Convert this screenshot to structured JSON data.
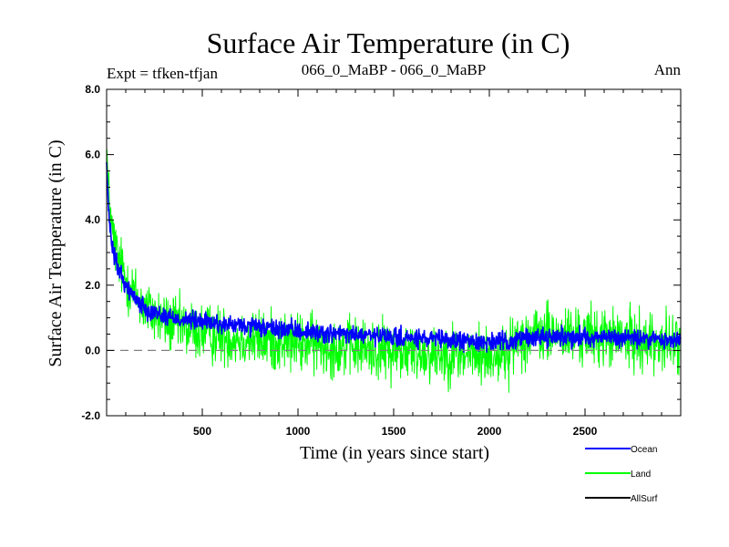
{
  "chart_data": {
    "type": "line",
    "title": "Surface Air Temperature (in C)",
    "subtitle_left": "Expt = tfken-tfjan",
    "subtitle_center": "066_0_MaBP - 066_0_MaBP",
    "subtitle_right": "Ann",
    "xlabel": "Time (in years since start)",
    "ylabel": "Surface Air Temperature (in C)",
    "xlim": [
      0,
      3000
    ],
    "ylim": [
      -2.0,
      8.0
    ],
    "xticks": [
      500,
      1000,
      1500,
      2000,
      2500
    ],
    "xtick_labels": [
      "500",
      "1000",
      "1500",
      "2000",
      "2500"
    ],
    "yticks": [
      -2.0,
      0.0,
      2.0,
      4.0,
      6.0,
      8.0
    ],
    "ytick_labels": [
      "-2.0",
      "0.0",
      "2.0",
      "4.0",
      "6.0",
      "8.0"
    ],
    "reference_line": {
      "y": 0.0,
      "style": "dashed",
      "color": "#808080"
    },
    "series": [
      {
        "name": "Land",
        "color": "#00ff00",
        "noise_amplitude": 0.9,
        "x": [
          0,
          10,
          30,
          60,
          100,
          150,
          200,
          300,
          400,
          500,
          600,
          700,
          800,
          900,
          1000,
          1100,
          1200,
          1300,
          1400,
          1500,
          1600,
          1700,
          1800,
          1900,
          2000,
          2100,
          2150,
          2200,
          2300,
          2400,
          2500,
          2600,
          2700,
          2800,
          2900,
          3000
        ],
        "values": [
          6.3,
          4.8,
          3.6,
          2.8,
          2.2,
          1.7,
          1.3,
          0.9,
          0.7,
          0.55,
          0.45,
          0.38,
          0.32,
          0.28,
          0.22,
          0.18,
          0.12,
          0.08,
          0.02,
          -0.02,
          -0.05,
          -0.08,
          -0.1,
          -0.12,
          -0.15,
          -0.1,
          0.4,
          0.45,
          0.5,
          0.45,
          0.45,
          0.4,
          0.35,
          0.3,
          0.25,
          0.2
        ]
      },
      {
        "name": "Ocean",
        "color": "#0000ff",
        "noise_amplitude": 0.28,
        "x": [
          0,
          10,
          30,
          60,
          100,
          150,
          200,
          300,
          400,
          500,
          600,
          700,
          800,
          900,
          1000,
          1100,
          1200,
          1300,
          1400,
          1500,
          1600,
          1700,
          1800,
          1900,
          2000,
          2100,
          2150,
          2200,
          2300,
          2400,
          2500,
          2600,
          2700,
          2800,
          2900,
          3000
        ],
        "values": [
          5.8,
          4.2,
          3.1,
          2.5,
          2.0,
          1.6,
          1.3,
          1.05,
          0.95,
          0.88,
          0.8,
          0.75,
          0.7,
          0.65,
          0.6,
          0.55,
          0.5,
          0.48,
          0.43,
          0.4,
          0.36,
          0.33,
          0.3,
          0.28,
          0.26,
          0.26,
          0.35,
          0.4,
          0.42,
          0.42,
          0.42,
          0.4,
          0.38,
          0.36,
          0.33,
          0.3
        ]
      }
    ],
    "legend": {
      "placement": "bottom-right",
      "entries": [
        {
          "label": "Ocean",
          "color": "#0000ff"
        },
        {
          "label": "Land",
          "color": "#00ff00"
        },
        {
          "label": "AllSurf",
          "color": "#000000"
        }
      ]
    }
  }
}
